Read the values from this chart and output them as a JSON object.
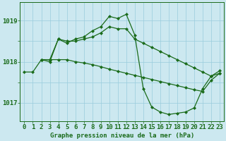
{
  "background_color": "#cce8f0",
  "grid_color": "#99ccdd",
  "line_color": "#1a6b1a",
  "marker_color": "#1a6b1a",
  "title": "Graphe pression niveau de la mer (hPa)",
  "tick_fontsize": 6.5,
  "xlim": [
    -0.5,
    23.5
  ],
  "ylim": [
    1016.55,
    1019.45
  ],
  "yticks": [
    1017,
    1018,
    1019
  ],
  "xticks": [
    0,
    1,
    2,
    3,
    4,
    5,
    6,
    7,
    8,
    9,
    10,
    11,
    12,
    13,
    14,
    15,
    16,
    17,
    18,
    19,
    20,
    21,
    22,
    23
  ],
  "series": [
    {
      "x": [
        2,
        3,
        4,
        5,
        6,
        7,
        8,
        9,
        10,
        11,
        12,
        13,
        14,
        15,
        16,
        17,
        18,
        19,
        20,
        21,
        22,
        23
      ],
      "y": [
        1018.05,
        1018.0,
        1018.55,
        1018.45,
        1018.55,
        1018.6,
        1018.75,
        1018.85,
        1019.1,
        1019.05,
        1019.15,
        1018.65,
        1017.35,
        1016.9,
        1016.78,
        1016.72,
        1016.75,
        1016.78,
        1016.88,
        1017.35,
        1017.65,
        1017.78
      ]
    },
    {
      "x": [
        0,
        1,
        2,
        3,
        4,
        5,
        6,
        7,
        8,
        9,
        10,
        11,
        12,
        13,
        14,
        15,
        16,
        17,
        18,
        19,
        20,
        21,
        22,
        23
      ],
      "y": [
        1017.75,
        1017.75,
        1018.05,
        1018.05,
        1018.05,
        1018.05,
        1018.0,
        1017.97,
        1017.93,
        1017.88,
        1017.82,
        1017.77,
        1017.72,
        1017.67,
        1017.62,
        1017.57,
        1017.52,
        1017.47,
        1017.42,
        1017.37,
        1017.32,
        1017.28,
        1017.55,
        1017.72
      ]
    },
    {
      "x": [
        2,
        3,
        4,
        5,
        6,
        7,
        8,
        9,
        10,
        11,
        12,
        13,
        14,
        15,
        16,
        17,
        18,
        19,
        20,
        21,
        22,
        23
      ],
      "y": [
        1018.05,
        1018.05,
        1018.55,
        1018.5,
        1018.5,
        1018.55,
        1018.6,
        1018.7,
        1018.85,
        1018.8,
        1018.8,
        1018.55,
        1018.45,
        1018.35,
        1018.25,
        1018.15,
        1018.05,
        1017.95,
        1017.85,
        1017.75,
        1017.65,
        1017.72
      ]
    }
  ]
}
